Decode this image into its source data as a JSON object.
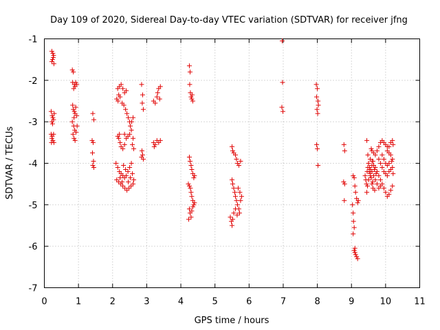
{
  "chart_data": {
    "type": "scatter",
    "title": "Day 109 of 2020, Sidereal Day-to-day VTEC variation (SDTVAR) for receiver jfng",
    "xlabel": "GPS time / hours",
    "ylabel": "SDTVAR / TECUs",
    "xlim": [
      0,
      11
    ],
    "ylim": [
      -7,
      -1
    ],
    "xticks": [
      "0",
      "1",
      "2",
      "3",
      "4",
      "5",
      "6",
      "7",
      "8",
      "9",
      "10",
      "11"
    ],
    "yticks": [
      "-1",
      "-2",
      "-3",
      "-4",
      "-5",
      "-6",
      "-7"
    ],
    "grid": true,
    "marker": "+",
    "color": "#e00000",
    "series": [
      {
        "name": "SDTVAR",
        "points": [
          [
            0.22,
            -1.3
          ],
          [
            0.25,
            -1.35
          ],
          [
            0.27,
            -1.4
          ],
          [
            0.24,
            -1.5
          ],
          [
            0.22,
            -1.55
          ],
          [
            0.28,
            -1.6
          ],
          [
            0.26,
            -1.45
          ],
          [
            0.2,
            -2.75
          ],
          [
            0.23,
            -2.85
          ],
          [
            0.25,
            -2.9
          ],
          [
            0.27,
            -2.95
          ],
          [
            0.22,
            -3.0
          ],
          [
            0.29,
            -2.8
          ],
          [
            0.24,
            -3.05
          ],
          [
            0.2,
            -3.3
          ],
          [
            0.22,
            -3.4
          ],
          [
            0.25,
            -3.45
          ],
          [
            0.28,
            -3.5
          ],
          [
            0.23,
            -3.35
          ],
          [
            0.27,
            -3.3
          ],
          [
            0.21,
            -3.5
          ],
          [
            0.82,
            -1.75
          ],
          [
            0.85,
            -1.8
          ],
          [
            0.83,
            -2.05
          ],
          [
            0.88,
            -2.1
          ],
          [
            0.9,
            -2.15
          ],
          [
            0.86,
            -2.2
          ],
          [
            0.92,
            -2.05
          ],
          [
            0.95,
            -2.1
          ],
          [
            0.83,
            -2.6
          ],
          [
            0.85,
            -2.7
          ],
          [
            0.88,
            -2.75
          ],
          [
            0.9,
            -2.8
          ],
          [
            0.87,
            -2.9
          ],
          [
            0.92,
            -2.65
          ],
          [
            0.95,
            -2.85
          ],
          [
            0.82,
            -3.0
          ],
          [
            0.86,
            -3.1
          ],
          [
            0.89,
            -3.2
          ],
          [
            0.93,
            -3.25
          ],
          [
            0.96,
            -3.1
          ],
          [
            0.84,
            -3.3
          ],
          [
            0.87,
            -3.4
          ],
          [
            0.9,
            -3.45
          ],
          [
            1.42,
            -2.8
          ],
          [
            1.45,
            -2.95
          ],
          [
            1.4,
            -3.45
          ],
          [
            1.43,
            -3.5
          ],
          [
            1.41,
            -3.75
          ],
          [
            1.44,
            -3.95
          ],
          [
            1.42,
            -4.05
          ],
          [
            1.45,
            -4.1
          ],
          [
            2.15,
            -2.2
          ],
          [
            2.2,
            -2.15
          ],
          [
            2.25,
            -2.1
          ],
          [
            2.3,
            -2.2
          ],
          [
            2.35,
            -2.3
          ],
          [
            2.4,
            -2.25
          ],
          [
            2.18,
            -2.35
          ],
          [
            2.22,
            -2.4
          ],
          [
            2.12,
            -2.45
          ],
          [
            2.16,
            -2.5
          ],
          [
            2.28,
            -2.55
          ],
          [
            2.33,
            -2.6
          ],
          [
            2.38,
            -2.7
          ],
          [
            2.42,
            -2.8
          ],
          [
            2.46,
            -2.9
          ],
          [
            2.5,
            -3.0
          ],
          [
            2.52,
            -3.1
          ],
          [
            2.55,
            -3.2
          ],
          [
            2.5,
            -3.3
          ],
          [
            2.45,
            -3.35
          ],
          [
            2.4,
            -3.4
          ],
          [
            2.35,
            -3.3
          ],
          [
            2.2,
            -3.3
          ],
          [
            2.18,
            -3.4
          ],
          [
            2.22,
            -3.5
          ],
          [
            2.25,
            -3.6
          ],
          [
            2.3,
            -3.65
          ],
          [
            2.35,
            -3.55
          ],
          [
            2.15,
            -3.35
          ],
          [
            2.6,
            -3.4
          ],
          [
            2.58,
            -3.55
          ],
          [
            2.62,
            -3.65
          ],
          [
            2.56,
            -3.0
          ],
          [
            2.6,
            -2.9
          ],
          [
            2.1,
            -4.0
          ],
          [
            2.15,
            -4.1
          ],
          [
            2.2,
            -4.2
          ],
          [
            2.25,
            -4.25
          ],
          [
            2.3,
            -4.3
          ],
          [
            2.35,
            -4.35
          ],
          [
            2.4,
            -4.3
          ],
          [
            2.45,
            -4.2
          ],
          [
            2.5,
            -4.1
          ],
          [
            2.55,
            -4.0
          ],
          [
            2.12,
            -4.4
          ],
          [
            2.18,
            -4.45
          ],
          [
            2.24,
            -4.5
          ],
          [
            2.3,
            -4.55
          ],
          [
            2.36,
            -4.6
          ],
          [
            2.42,
            -4.65
          ],
          [
            2.48,
            -4.6
          ],
          [
            2.54,
            -4.55
          ],
          [
            2.6,
            -4.5
          ],
          [
            2.22,
            -4.35
          ],
          [
            2.28,
            -4.45
          ],
          [
            2.62,
            -4.4
          ],
          [
            2.58,
            -4.25
          ],
          [
            2.52,
            -4.35
          ],
          [
            2.46,
            -4.45
          ],
          [
            2.38,
            -4.15
          ],
          [
            2.32,
            -4.05
          ],
          [
            2.85,
            -2.1
          ],
          [
            2.88,
            -2.35
          ],
          [
            2.87,
            -2.55
          ],
          [
            2.9,
            -2.7
          ],
          [
            2.86,
            -3.7
          ],
          [
            2.88,
            -3.8
          ],
          [
            2.9,
            -3.9
          ],
          [
            2.85,
            -3.85
          ],
          [
            3.2,
            -2.5
          ],
          [
            3.25,
            -2.55
          ],
          [
            3.3,
            -2.4
          ],
          [
            3.35,
            -2.2
          ],
          [
            3.4,
            -2.15
          ],
          [
            3.32,
            -2.3
          ],
          [
            3.38,
            -2.45
          ],
          [
            3.2,
            -3.5
          ],
          [
            3.25,
            -3.55
          ],
          [
            3.3,
            -3.45
          ],
          [
            3.35,
            -3.5
          ],
          [
            3.22,
            -3.6
          ],
          [
            3.4,
            -3.45
          ],
          [
            4.25,
            -1.65
          ],
          [
            4.27,
            -1.8
          ],
          [
            4.26,
            -2.1
          ],
          [
            4.28,
            -2.3
          ],
          [
            4.3,
            -2.4
          ],
          [
            4.32,
            -2.45
          ],
          [
            4.35,
            -2.5
          ],
          [
            4.33,
            -2.35
          ],
          [
            4.25,
            -3.85
          ],
          [
            4.27,
            -3.95
          ],
          [
            4.3,
            -4.05
          ],
          [
            4.32,
            -4.15
          ],
          [
            4.35,
            -4.25
          ],
          [
            4.38,
            -4.35
          ],
          [
            4.4,
            -4.3
          ],
          [
            4.22,
            -4.5
          ],
          [
            4.25,
            -4.55
          ],
          [
            4.28,
            -4.6
          ],
          [
            4.3,
            -4.7
          ],
          [
            4.32,
            -4.8
          ],
          [
            4.35,
            -4.9
          ],
          [
            4.38,
            -5.0
          ],
          [
            4.25,
            -5.1
          ],
          [
            4.27,
            -5.2
          ],
          [
            4.3,
            -5.3
          ],
          [
            4.32,
            -5.15
          ],
          [
            4.35,
            -5.05
          ],
          [
            4.4,
            -4.95
          ],
          [
            4.23,
            -5.35
          ],
          [
            5.5,
            -3.6
          ],
          [
            5.52,
            -3.7
          ],
          [
            5.55,
            -3.75
          ],
          [
            5.6,
            -3.8
          ],
          [
            5.63,
            -3.9
          ],
          [
            5.66,
            -4.0
          ],
          [
            5.7,
            -4.05
          ],
          [
            5.75,
            -3.95
          ],
          [
            5.5,
            -4.4
          ],
          [
            5.52,
            -4.5
          ],
          [
            5.55,
            -4.6
          ],
          [
            5.58,
            -4.7
          ],
          [
            5.6,
            -4.8
          ],
          [
            5.63,
            -4.9
          ],
          [
            5.66,
            -5.0
          ],
          [
            5.7,
            -5.1
          ],
          [
            5.72,
            -5.2
          ],
          [
            5.75,
            -4.9
          ],
          [
            5.78,
            -4.8
          ],
          [
            5.73,
            -4.7
          ],
          [
            5.68,
            -4.6
          ],
          [
            5.45,
            -5.3
          ],
          [
            5.48,
            -5.4
          ],
          [
            5.5,
            -5.5
          ],
          [
            5.55,
            -5.2
          ],
          [
            5.6,
            -5.1
          ],
          [
            5.65,
            -5.25
          ],
          [
            5.52,
            -5.35
          ],
          [
            6.97,
            -1.05
          ],
          [
            6.98,
            -2.05
          ],
          [
            6.96,
            -2.65
          ],
          [
            6.99,
            -2.75
          ],
          [
            7.97,
            -2.1
          ],
          [
            8.0,
            -2.2
          ],
          [
            7.98,
            -2.4
          ],
          [
            8.02,
            -2.5
          ],
          [
            7.99,
            -2.7
          ],
          [
            8.01,
            -2.8
          ],
          [
            8.03,
            -2.6
          ],
          [
            7.98,
            -3.55
          ],
          [
            8.0,
            -3.65
          ],
          [
            8.02,
            -4.05
          ],
          [
            8.78,
            -3.55
          ],
          [
            8.8,
            -3.7
          ],
          [
            8.77,
            -4.45
          ],
          [
            8.8,
            -4.5
          ],
          [
            8.79,
            -4.9
          ],
          [
            9.05,
            -4.3
          ],
          [
            9.08,
            -4.35
          ],
          [
            9.1,
            -4.55
          ],
          [
            9.12,
            -4.7
          ],
          [
            9.15,
            -4.85
          ],
          [
            9.18,
            -4.95
          ],
          [
            9.2,
            -4.9
          ],
          [
            9.03,
            -5.0
          ],
          [
            9.05,
            -5.2
          ],
          [
            9.06,
            -5.4
          ],
          [
            9.08,
            -5.55
          ],
          [
            9.05,
            -5.7
          ],
          [
            9.08,
            -6.1
          ],
          [
            9.1,
            -6.15
          ],
          [
            9.12,
            -6.2
          ],
          [
            9.15,
            -6.25
          ],
          [
            9.18,
            -6.3
          ],
          [
            9.1,
            -6.05
          ],
          [
            9.45,
            -3.45
          ],
          [
            9.48,
            -3.8
          ],
          [
            9.5,
            -4.0
          ],
          [
            9.52,
            -4.2
          ],
          [
            9.55,
            -4.3
          ],
          [
            9.5,
            -4.4
          ],
          [
            9.47,
            -4.55
          ],
          [
            9.45,
            -4.7
          ],
          [
            9.55,
            -3.9
          ],
          [
            9.6,
            -3.95
          ],
          [
            9.65,
            -4.05
          ],
          [
            9.7,
            -4.1
          ],
          [
            9.75,
            -4.2
          ],
          [
            9.8,
            -4.3
          ],
          [
            9.85,
            -4.4
          ],
          [
            9.9,
            -4.5
          ],
          [
            9.95,
            -4.6
          ],
          [
            10.0,
            -4.7
          ],
          [
            10.05,
            -4.8
          ],
          [
            10.1,
            -4.75
          ],
          [
            10.15,
            -4.65
          ],
          [
            10.2,
            -4.55
          ],
          [
            9.6,
            -4.2
          ],
          [
            9.65,
            -4.3
          ],
          [
            9.7,
            -4.4
          ],
          [
            9.75,
            -4.5
          ],
          [
            9.8,
            -4.6
          ],
          [
            9.85,
            -4.55
          ],
          [
            9.62,
            -4.45
          ],
          [
            9.55,
            -4.25
          ],
          [
            9.58,
            -4.35
          ],
          [
            9.6,
            -4.5
          ],
          [
            9.63,
            -4.6
          ],
          [
            9.68,
            -4.65
          ],
          [
            9.75,
            -3.7
          ],
          [
            9.8,
            -3.6
          ],
          [
            9.85,
            -3.5
          ],
          [
            9.9,
            -3.45
          ],
          [
            9.95,
            -3.5
          ],
          [
            10.0,
            -3.55
          ],
          [
            10.05,
            -3.6
          ],
          [
            9.7,
            -3.8
          ],
          [
            9.65,
            -3.75
          ],
          [
            9.6,
            -3.7
          ],
          [
            9.58,
            -3.65
          ],
          [
            9.8,
            -3.9
          ],
          [
            9.85,
            -4.0
          ],
          [
            9.9,
            -4.1
          ],
          [
            9.95,
            -4.2
          ],
          [
            10.0,
            -4.25
          ],
          [
            10.05,
            -4.3
          ],
          [
            10.1,
            -4.2
          ],
          [
            10.15,
            -4.15
          ],
          [
            10.2,
            -4.1
          ],
          [
            10.22,
            -4.25
          ],
          [
            10.05,
            -3.7
          ],
          [
            10.1,
            -3.6
          ],
          [
            10.15,
            -3.5
          ],
          [
            10.2,
            -3.45
          ],
          [
            10.22,
            -3.55
          ],
          [
            10.1,
            -3.75
          ],
          [
            10.15,
            -3.8
          ],
          [
            9.9,
            -3.8
          ],
          [
            9.95,
            -3.9
          ],
          [
            10.0,
            -4.0
          ],
          [
            10.05,
            -4.05
          ],
          [
            10.1,
            -4.0
          ],
          [
            10.18,
            -3.95
          ],
          [
            10.2,
            -3.9
          ],
          [
            9.5,
            -4.0
          ],
          [
            9.53,
            -4.1
          ],
          [
            9.56,
            -4.15
          ],
          [
            9.6,
            -4.05
          ],
          [
            9.63,
            -3.95
          ],
          [
            9.67,
            -4.15
          ],
          [
            9.72,
            -4.25
          ],
          [
            9.4,
            -4.3
          ],
          [
            9.42,
            -4.4
          ],
          [
            9.44,
            -4.5
          ],
          [
            9.46,
            -4.2
          ],
          [
            9.48,
            -4.1
          ]
        ]
      }
    ]
  }
}
